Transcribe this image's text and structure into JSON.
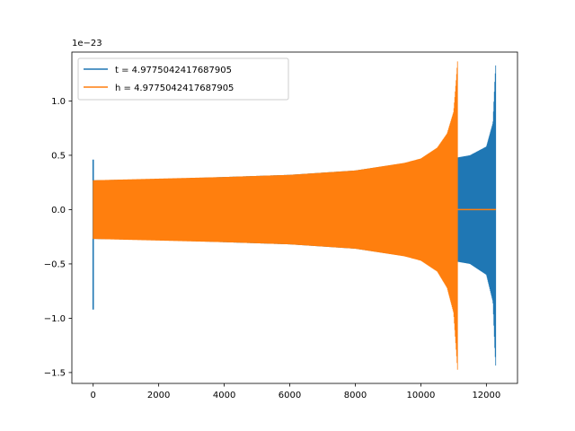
{
  "chart_data": {
    "type": "line",
    "title": "",
    "xlabel": "",
    "ylabel": "",
    "y_offset_label": "1e−23",
    "xlim": [
      -650,
      12950
    ],
    "ylim": [
      -1.6,
      1.45
    ],
    "x_ticks": [
      0,
      2000,
      4000,
      6000,
      8000,
      10000,
      12000
    ],
    "x_tick_labels": [
      "0",
      "2000",
      "4000",
      "6000",
      "8000",
      "10000",
      "12000"
    ],
    "y_ticks": [
      -1.5,
      -1.0,
      -0.5,
      0.0,
      0.5,
      1.0
    ],
    "y_tick_labels": [
      "−1.5",
      "−1.0",
      "−0.5",
      "0.0",
      "0.5",
      "1.0"
    ],
    "grid": false,
    "legend_position": "top-left",
    "series": [
      {
        "name": "t = 4.9775042417687905",
        "color": "#1f77b4",
        "description": "oscillating strain, envelope; spike near x=0",
        "spike": {
          "x": 0,
          "max": 0.46,
          "min": -0.92
        },
        "envelope_x": [
          0,
          2000,
          4000,
          6000,
          8000,
          10000,
          11100,
          11120,
          11500,
          12000,
          12200,
          12260,
          12290
        ],
        "envelope_upper": [
          0.27,
          0.28,
          0.3,
          0.32,
          0.36,
          0.45,
          0.47,
          0.48,
          0.5,
          0.58,
          0.8,
          1.2,
          1.36
        ],
        "envelope_lower": [
          -0.27,
          -0.28,
          -0.3,
          -0.32,
          -0.36,
          -0.45,
          -0.47,
          -0.48,
          -0.5,
          -0.6,
          -0.85,
          -1.3,
          -1.47
        ]
      },
      {
        "name": "h = 4.9775042417687905",
        "color": "#ff7f0e",
        "description": "oscillating strain, envelope; flat after merger",
        "envelope_x": [
          0,
          2000,
          4000,
          6000,
          8000,
          9500,
          10000,
          10500,
          10800,
          11000,
          11080,
          11120
        ],
        "envelope_upper": [
          0.27,
          0.285,
          0.3,
          0.32,
          0.36,
          0.43,
          0.47,
          0.57,
          0.7,
          0.9,
          1.2,
          1.37
        ],
        "envelope_lower": [
          -0.27,
          -0.285,
          -0.3,
          -0.32,
          -0.36,
          -0.43,
          -0.47,
          -0.57,
          -0.72,
          -0.95,
          -1.3,
          -1.48
        ],
        "flat_after": {
          "x_start": 11120,
          "x_end": 12290,
          "y": 0.0
        }
      }
    ]
  }
}
